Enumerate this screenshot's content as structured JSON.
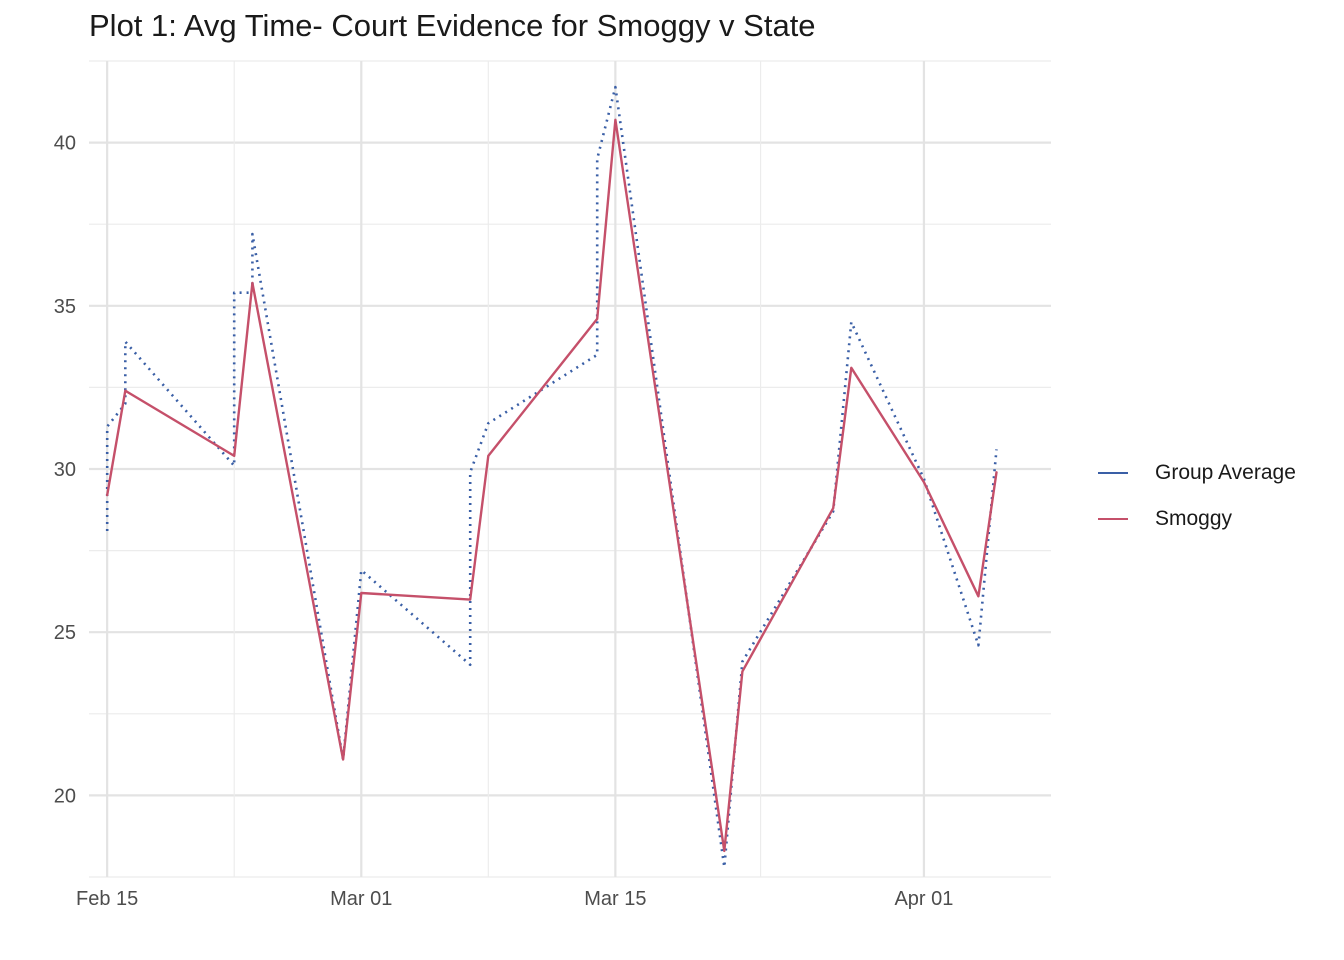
{
  "chart_data": {
    "type": "line",
    "title": "Plot 1: Avg Time- Court Evidence for Smoggy v State",
    "xlabel": "",
    "ylabel": "",
    "x_axis": {
      "type": "date",
      "range": [
        "2021-02-14",
        "2021-04-08"
      ],
      "ticks": [
        {
          "date": "2021-02-15",
          "label": "Feb 15"
        },
        {
          "date": "2021-03-01",
          "label": "Mar 01"
        },
        {
          "date": "2021-03-15",
          "label": "Mar 15"
        },
        {
          "date": "2021-04-01",
          "label": "Apr 01"
        }
      ],
      "minor_ticks": [
        "2021-02-22",
        "2021-03-08",
        "2021-03-23"
      ]
    },
    "y_axis": {
      "range": [
        17.5,
        42.5
      ],
      "ticks": [
        20,
        25,
        30,
        35,
        40
      ],
      "minor_ticks": [
        17.5,
        22.5,
        27.5,
        32.5,
        37.5,
        42.5
      ]
    },
    "grid": true,
    "legend_position": "right",
    "series": [
      {
        "name": "Group Average",
        "color": "#3a5fa6",
        "style": "dotted",
        "points": [
          {
            "x": "2021-02-15",
            "y": 28.1
          },
          {
            "x": "2021-02-15",
            "y": 31.3
          },
          {
            "x": "2021-02-16",
            "y": 32.0
          },
          {
            "x": "2021-02-16",
            "y": 33.9
          },
          {
            "x": "2021-02-22",
            "y": 30.1
          },
          {
            "x": "2021-02-22",
            "y": 35.4
          },
          {
            "x": "2021-02-23",
            "y": 35.4
          },
          {
            "x": "2021-02-23",
            "y": 37.2
          },
          {
            "x": "2021-02-28",
            "y": 21.1
          },
          {
            "x": "2021-03-01",
            "y": 26.9
          },
          {
            "x": "2021-03-07",
            "y": 24.0
          },
          {
            "x": "2021-03-07",
            "y": 29.9
          },
          {
            "x": "2021-03-08",
            "y": 31.4
          },
          {
            "x": "2021-03-14",
            "y": 33.5
          },
          {
            "x": "2021-03-14",
            "y": 39.5
          },
          {
            "x": "2021-03-15",
            "y": 41.7
          },
          {
            "x": "2021-03-21",
            "y": 17.8
          },
          {
            "x": "2021-03-22",
            "y": 24.1
          },
          {
            "x": "2021-03-27",
            "y": 28.7
          },
          {
            "x": "2021-03-28",
            "y": 34.5
          },
          {
            "x": "2021-04-01",
            "y": 29.7
          },
          {
            "x": "2021-04-04",
            "y": 24.6
          },
          {
            "x": "2021-04-05",
            "y": 30.6
          }
        ]
      },
      {
        "name": "Smoggy",
        "color": "#c5506a",
        "style": "solid",
        "points": [
          {
            "x": "2021-02-15",
            "y": 29.2
          },
          {
            "x": "2021-02-16",
            "y": 32.4
          },
          {
            "x": "2021-02-22",
            "y": 30.4
          },
          {
            "x": "2021-02-23",
            "y": 35.7
          },
          {
            "x": "2021-02-28",
            "y": 21.1
          },
          {
            "x": "2021-03-01",
            "y": 26.2
          },
          {
            "x": "2021-03-07",
            "y": 26.0
          },
          {
            "x": "2021-03-08",
            "y": 30.4
          },
          {
            "x": "2021-03-14",
            "y": 34.6
          },
          {
            "x": "2021-03-15",
            "y": 40.7
          },
          {
            "x": "2021-03-21",
            "y": 18.3
          },
          {
            "x": "2021-03-22",
            "y": 23.8
          },
          {
            "x": "2021-03-27",
            "y": 28.8
          },
          {
            "x": "2021-03-28",
            "y": 33.1
          },
          {
            "x": "2021-04-01",
            "y": 29.6
          },
          {
            "x": "2021-04-04",
            "y": 26.1
          },
          {
            "x": "2021-04-05",
            "y": 29.9
          }
        ]
      }
    ]
  }
}
